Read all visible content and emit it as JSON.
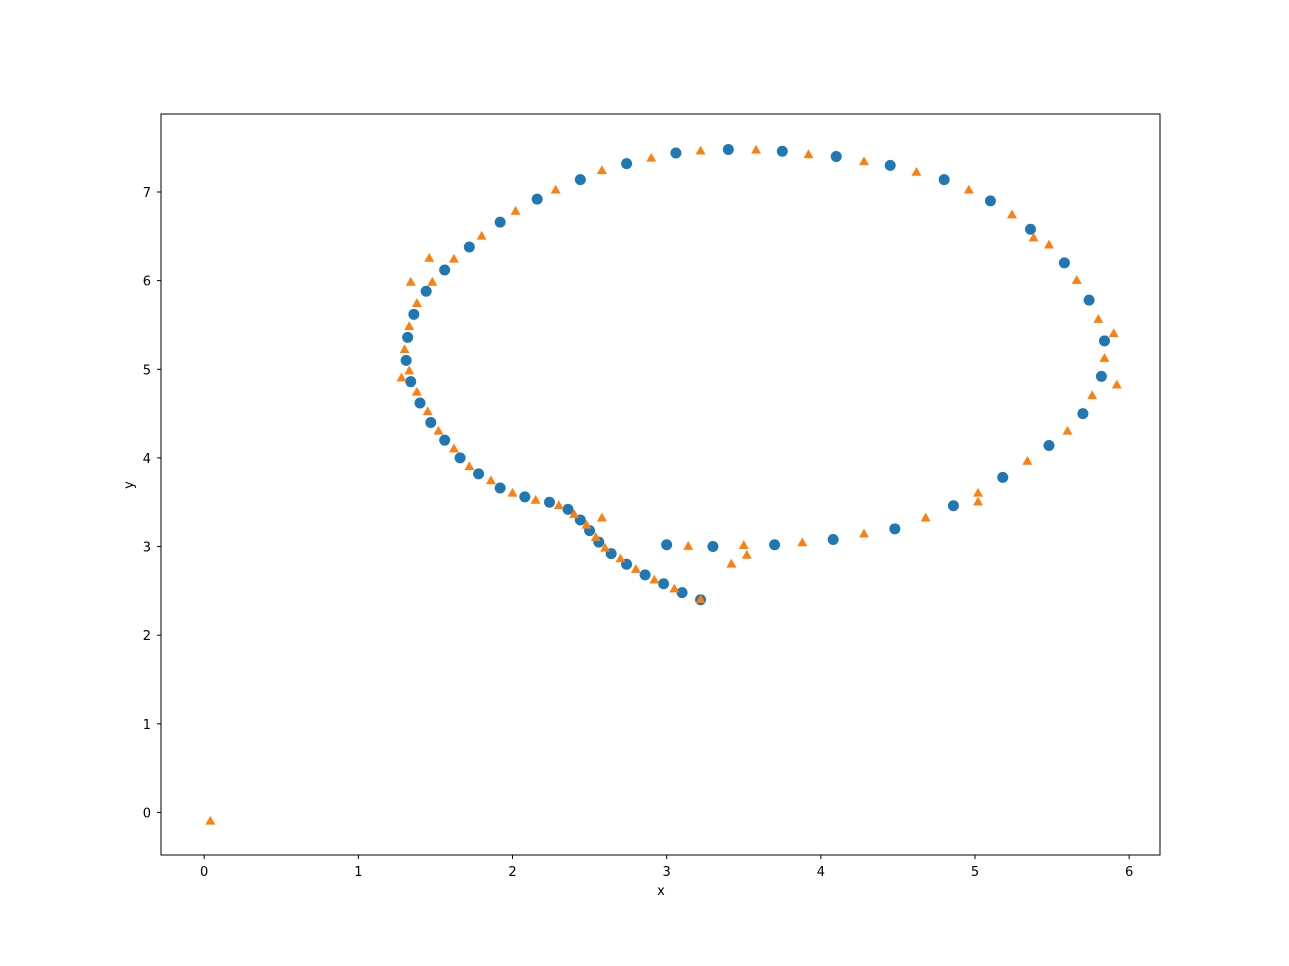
{
  "chart_data": {
    "type": "scatter",
    "title": "",
    "xlabel": "x",
    "ylabel": "y",
    "xlim": [
      -0.28,
      6.2
    ],
    "ylim": [
      -0.48,
      7.88
    ],
    "xticks": [
      0,
      1,
      2,
      3,
      4,
      5,
      6
    ],
    "yticks": [
      0,
      1,
      2,
      3,
      4,
      5,
      6,
      7
    ],
    "grid": false,
    "legend": "none",
    "series": [
      {
        "marker": "circle",
        "color": "#1f77b4",
        "points": [
          [
            3.22,
            2.4
          ],
          [
            3.1,
            2.48
          ],
          [
            2.98,
            2.58
          ],
          [
            2.86,
            2.68
          ],
          [
            2.74,
            2.8
          ],
          [
            2.64,
            2.92
          ],
          [
            2.56,
            3.05
          ],
          [
            2.5,
            3.18
          ],
          [
            2.44,
            3.3
          ],
          [
            2.36,
            3.42
          ],
          [
            2.24,
            3.5
          ],
          [
            2.08,
            3.56
          ],
          [
            1.92,
            3.66
          ],
          [
            1.78,
            3.82
          ],
          [
            1.66,
            4.0
          ],
          [
            1.56,
            4.2
          ],
          [
            1.47,
            4.4
          ],
          [
            1.4,
            4.62
          ],
          [
            1.34,
            4.86
          ],
          [
            1.31,
            5.1
          ],
          [
            1.32,
            5.36
          ],
          [
            1.36,
            5.62
          ],
          [
            1.44,
            5.88
          ],
          [
            1.56,
            6.12
          ],
          [
            1.72,
            6.38
          ],
          [
            1.92,
            6.66
          ],
          [
            2.16,
            6.92
          ],
          [
            2.44,
            7.14
          ],
          [
            2.74,
            7.32
          ],
          [
            3.06,
            7.44
          ],
          [
            3.4,
            7.48
          ],
          [
            3.75,
            7.46
          ],
          [
            4.1,
            7.4
          ],
          [
            4.45,
            7.3
          ],
          [
            4.8,
            7.14
          ],
          [
            5.1,
            6.9
          ],
          [
            5.36,
            6.58
          ],
          [
            5.58,
            6.2
          ],
          [
            5.74,
            5.78
          ],
          [
            5.84,
            5.32
          ],
          [
            5.82,
            4.92
          ],
          [
            5.7,
            4.5
          ],
          [
            5.48,
            4.14
          ],
          [
            5.18,
            3.78
          ],
          [
            4.86,
            3.46
          ],
          [
            4.48,
            3.2
          ],
          [
            4.08,
            3.08
          ],
          [
            3.7,
            3.02
          ],
          [
            3.3,
            3.0
          ],
          [
            3.0,
            3.02
          ]
        ]
      },
      {
        "marker": "triangle",
        "color": "#ff7f0e",
        "points": [
          [
            0.04,
            -0.1
          ],
          [
            3.22,
            2.4
          ],
          [
            3.05,
            2.52
          ],
          [
            2.92,
            2.62
          ],
          [
            2.8,
            2.74
          ],
          [
            2.7,
            2.86
          ],
          [
            2.6,
            2.98
          ],
          [
            2.54,
            3.1
          ],
          [
            2.48,
            3.24
          ],
          [
            2.4,
            3.36
          ],
          [
            2.3,
            3.46
          ],
          [
            2.15,
            3.52
          ],
          [
            2.0,
            3.6
          ],
          [
            1.86,
            3.74
          ],
          [
            1.72,
            3.9
          ],
          [
            1.62,
            4.1
          ],
          [
            1.52,
            4.3
          ],
          [
            1.45,
            4.52
          ],
          [
            1.38,
            4.74
          ],
          [
            1.33,
            4.98
          ],
          [
            1.3,
            5.22
          ],
          [
            1.33,
            5.48
          ],
          [
            1.38,
            5.74
          ],
          [
            1.48,
            5.98
          ],
          [
            1.62,
            6.24
          ],
          [
            1.8,
            6.5
          ],
          [
            2.02,
            6.78
          ],
          [
            2.28,
            7.02
          ],
          [
            2.58,
            7.24
          ],
          [
            2.9,
            7.38
          ],
          [
            3.22,
            7.46
          ],
          [
            3.58,
            7.47
          ],
          [
            3.92,
            7.42
          ],
          [
            4.28,
            7.34
          ],
          [
            4.62,
            7.22
          ],
          [
            4.96,
            7.02
          ],
          [
            5.24,
            6.74
          ],
          [
            5.48,
            6.4
          ],
          [
            5.66,
            6.0
          ],
          [
            5.8,
            5.56
          ],
          [
            5.84,
            5.12
          ],
          [
            5.76,
            4.7
          ],
          [
            5.6,
            4.3
          ],
          [
            5.34,
            3.96
          ],
          [
            5.02,
            3.6
          ],
          [
            4.68,
            3.32
          ],
          [
            4.28,
            3.14
          ],
          [
            3.88,
            3.04
          ],
          [
            3.5,
            3.01
          ],
          [
            3.14,
            3.0
          ],
          [
            1.34,
            5.98
          ],
          [
            1.46,
            6.25
          ],
          [
            1.28,
            4.9
          ],
          [
            3.42,
            2.8
          ],
          [
            5.02,
            3.5
          ],
          [
            5.9,
            5.4
          ],
          [
            5.92,
            4.82
          ],
          [
            5.38,
            6.48
          ],
          [
            2.58,
            3.32
          ],
          [
            3.52,
            2.9
          ]
        ]
      }
    ]
  }
}
